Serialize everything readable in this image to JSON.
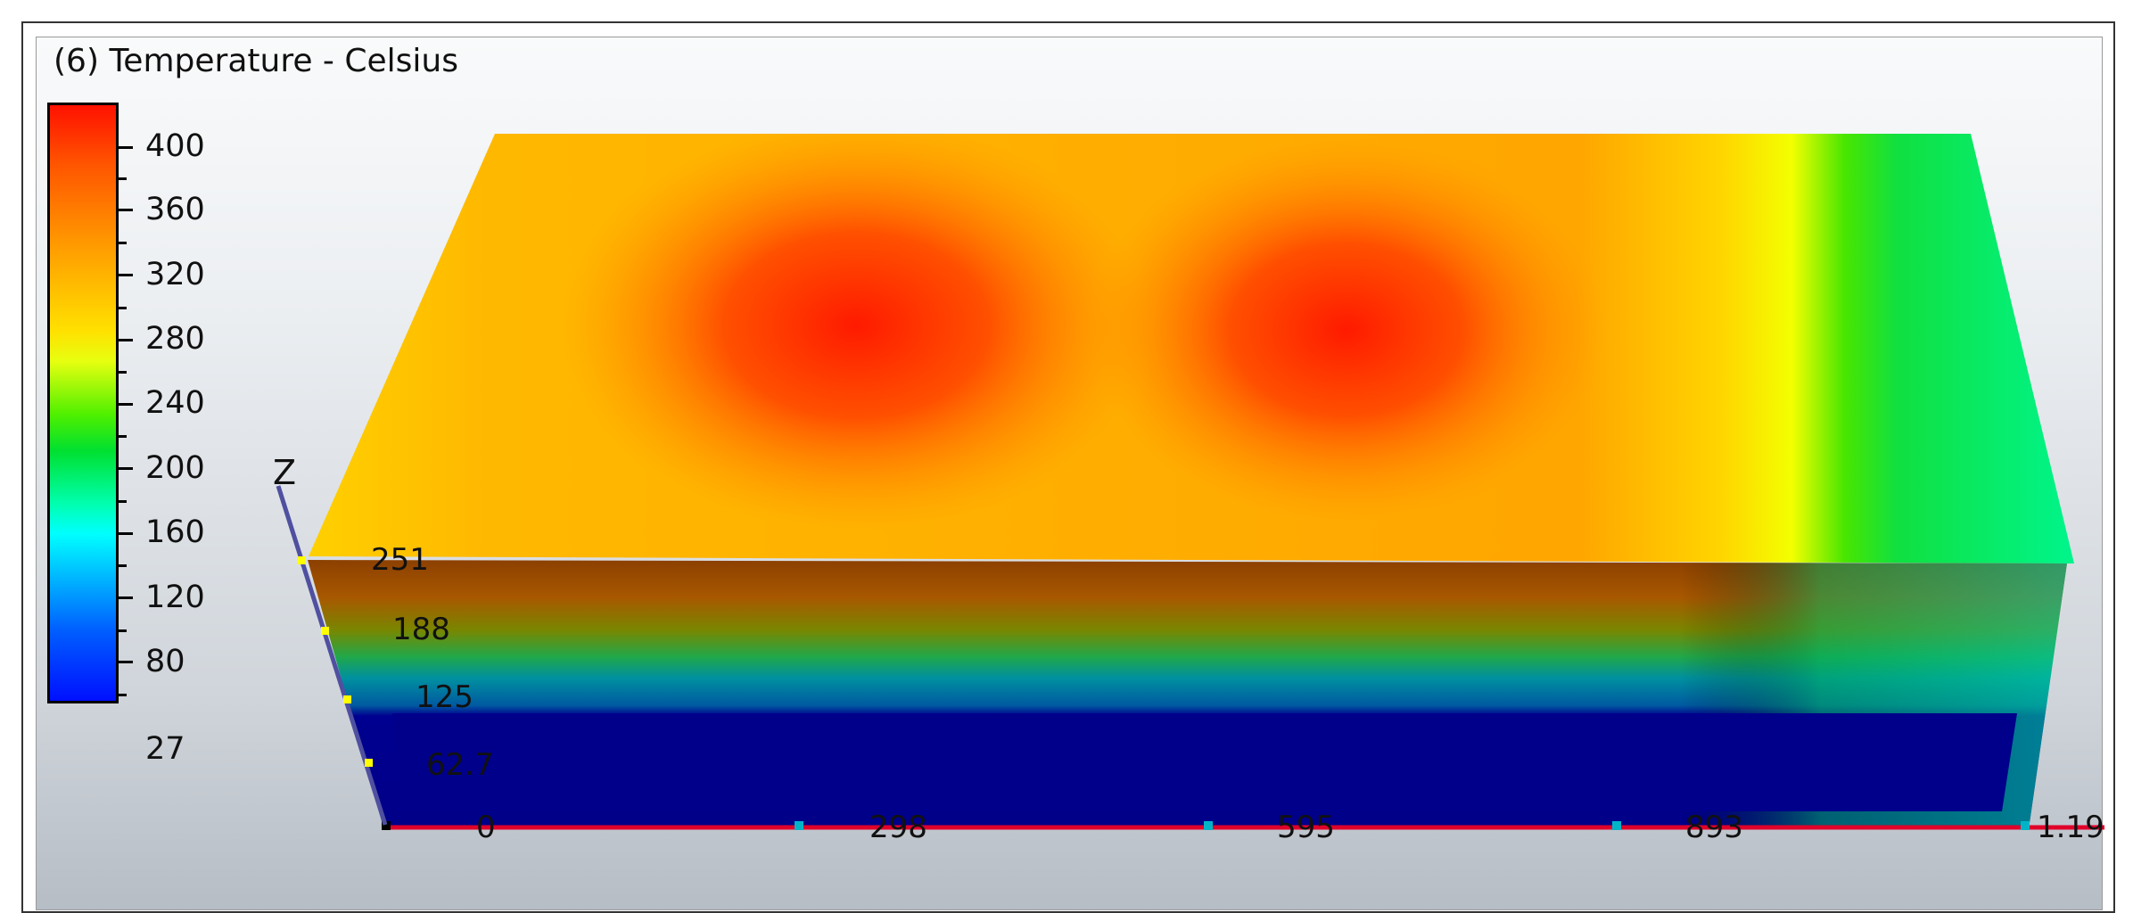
{
  "legend": {
    "title": "(6) Temperature - Celsius",
    "tick_labels": [
      "400",
      "360",
      "320",
      "280",
      "240",
      "200",
      "160",
      "120",
      "80",
      "27"
    ],
    "range": [
      27,
      400
    ]
  },
  "axes": {
    "z_label": "Z",
    "z_ticks": [
      "251",
      "188",
      "125",
      "62.7"
    ],
    "x_ticks": [
      "0",
      "298",
      "595",
      "893",
      "1.19"
    ]
  },
  "colors": {
    "hot": "#ff1a00",
    "warm": "#ffa000",
    "mid": "#ffe600",
    "green": "#00e030",
    "cool": "#00aaff",
    "cold": "#00008c",
    "x_axis": "#e0002a",
    "z_axis": "#5050a0",
    "tick_marker": "#00b4c8"
  }
}
